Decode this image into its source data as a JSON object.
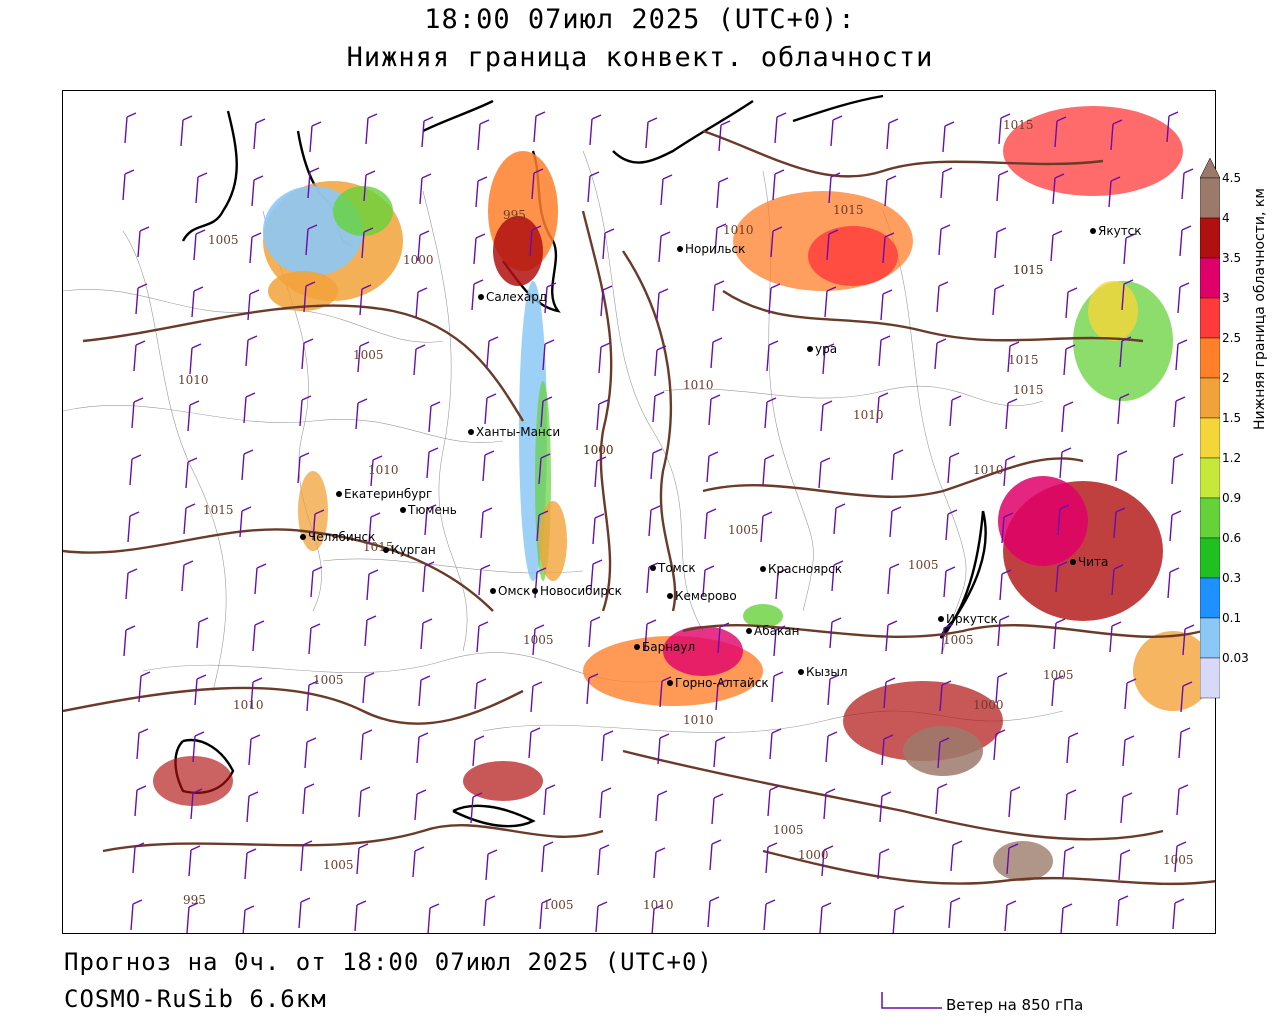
{
  "header": {
    "title_line1": "18:00 07июл 2025 (UTC+0):",
    "title_line2": "Нижняя граница конвект. облачности"
  },
  "footer": {
    "forecast_text": "Прогноз на 0ч. от 18:00 07июл 2025 (UTC+0)",
    "model_text": "COSMO-RuSib 6.6км",
    "wind_key_label": "Ветер на 850 гПа",
    "wind_key_color": "#6a0dad"
  },
  "legend": {
    "title": "Нижняя граница облачности, км",
    "levels": [
      {
        "label": "4.5",
        "color": "#9c7a6b"
      },
      {
        "label": "4",
        "color": "#b01010"
      },
      {
        "label": "3.5",
        "color": "#e0006a"
      },
      {
        "label": "3",
        "color": "#ff3a3a"
      },
      {
        "label": "2.5",
        "color": "#ff7f2a"
      },
      {
        "label": "2",
        "color": "#f2a23a"
      },
      {
        "label": "1.5",
        "color": "#f5d63a"
      },
      {
        "label": "1.2",
        "color": "#c6e83a"
      },
      {
        "label": "0.9",
        "color": "#66d23a"
      },
      {
        "label": "0.6",
        "color": "#1fc01f"
      },
      {
        "label": "0.3",
        "color": "#1e90ff"
      },
      {
        "label": "0.1",
        "color": "#8cc8f5"
      },
      {
        "label": "0.03",
        "color": "#d8d8f8"
      }
    ]
  },
  "map": {
    "cities": [
      {
        "name": "Норильск"
      },
      {
        "name": "Салехард"
      },
      {
        "name": "Ханты-Манси"
      },
      {
        "name": "Екатеринбург"
      },
      {
        "name": "Тюмень"
      },
      {
        "name": "Челябинск"
      },
      {
        "name": "Курган"
      },
      {
        "name": "Омск"
      },
      {
        "name": "Новосибирск"
      },
      {
        "name": "Томск"
      },
      {
        "name": "Кемерово"
      },
      {
        "name": "Барнаул"
      },
      {
        "name": "Горно-Алтайск"
      },
      {
        "name": "Абакан"
      },
      {
        "name": "Кызыл"
      },
      {
        "name": "Красноярск"
      },
      {
        "name": "Иркутск"
      },
      {
        "name": "Чита"
      },
      {
        "name": "Якутск"
      },
      {
        "name": "ура"
      }
    ],
    "isobar_labels": [
      "1005",
      "1000",
      "1005",
      "1010",
      "1015",
      "1015",
      "1010",
      "1005",
      "1010",
      "1005",
      "995",
      "1000",
      "1010",
      "1010",
      "1015",
      "1015",
      "1015",
      "1015",
      "1010",
      "1000",
      "1015",
      "1010",
      "1005",
      "1005",
      "1005",
      "1000",
      "1005",
      "1005",
      "1005",
      "1000",
      "1005",
      "1005",
      "1010",
      "1015",
      "1010",
      "995"
    ]
  }
}
